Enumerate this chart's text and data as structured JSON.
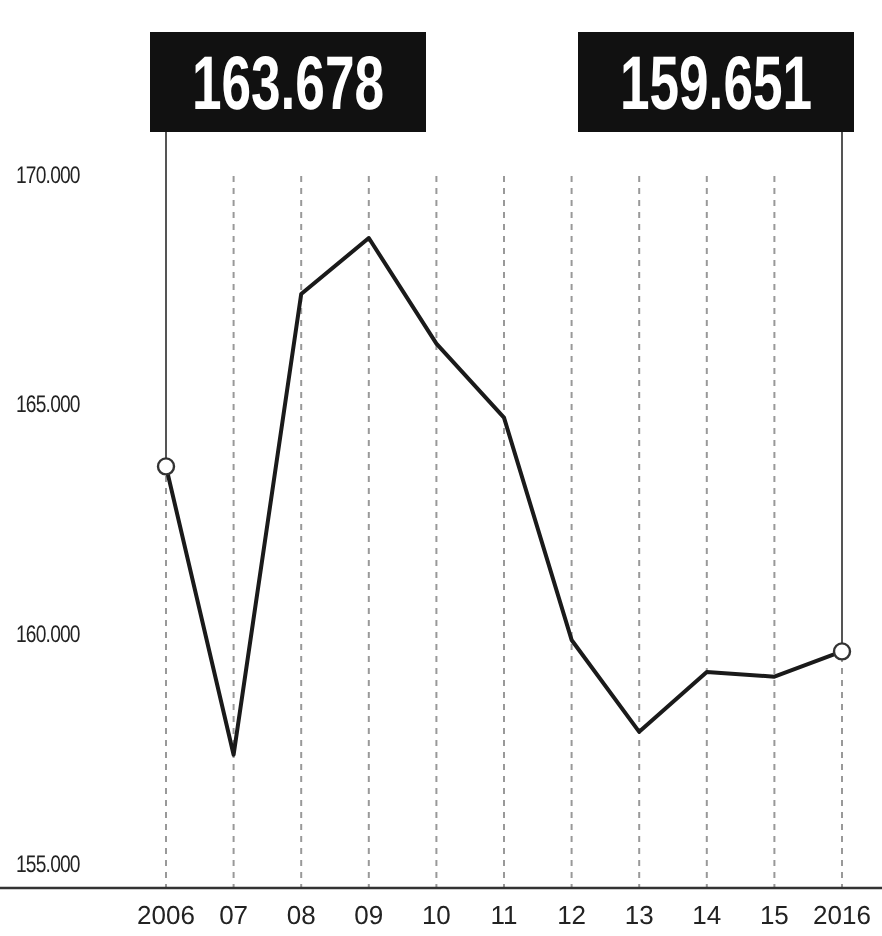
{
  "chart_data": {
    "type": "line",
    "categories": [
      "2006",
      "07",
      "08",
      "09",
      "10",
      "11",
      "12",
      "13",
      "14",
      "15",
      "2016"
    ],
    "series": [
      {
        "color": "#1a1a1a",
        "values": [
          163.678,
          157.4,
          167.43,
          168.65,
          166.35,
          164.74,
          159.9,
          157.9,
          159.2,
          159.1,
          159.651
        ],
        "value_labels": [
          "163.678",
          null,
          null,
          null,
          null,
          null,
          null,
          null,
          null,
          null,
          "159.651"
        ]
      }
    ],
    "ylim": [
      154.5,
      170
    ],
    "yticks": [
      {
        "value": 155,
        "label": "155.000"
      },
      {
        "value": 160,
        "label": "160.000"
      },
      {
        "value": 165,
        "label": "165.000"
      },
      {
        "value": 170,
        "label": "170.000"
      }
    ],
    "grid": "x"
  }
}
